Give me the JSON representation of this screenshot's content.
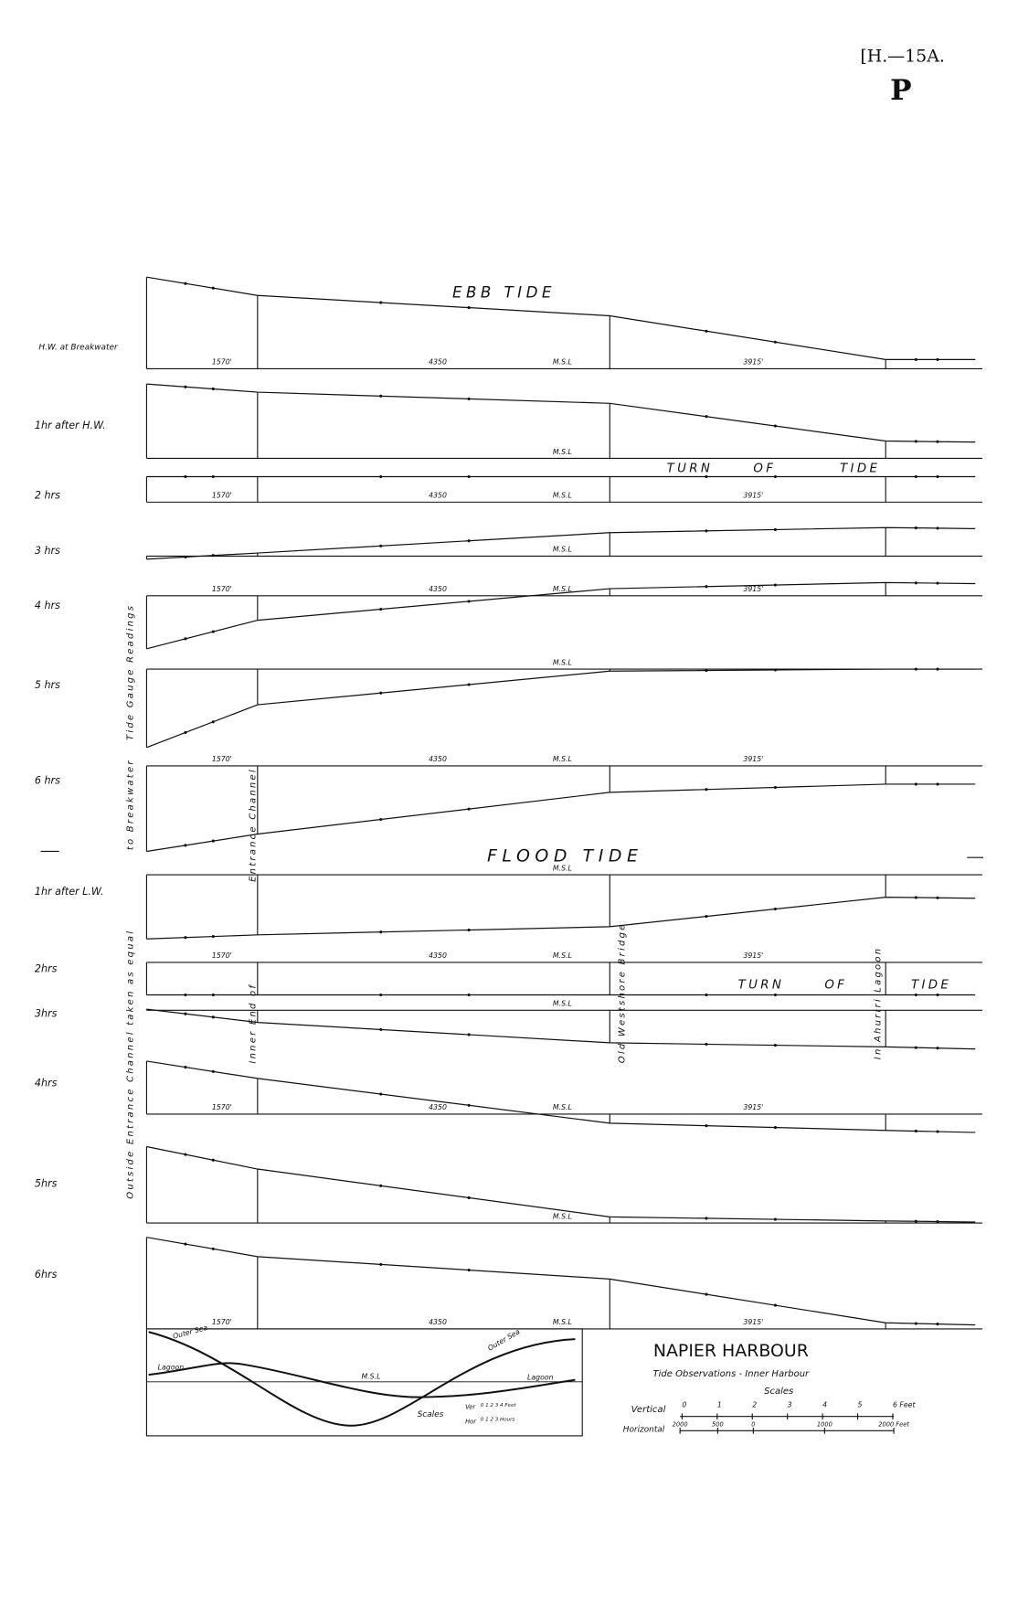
{
  "header": {
    "ref": "[H.—15A.",
    "letter": "P"
  },
  "sections": {
    "ebb": "EBB TIDE",
    "flood": "FLOOD TIDE",
    "turn": [
      "TURN",
      "OF",
      "TIDE"
    ]
  },
  "rows": [
    "H.W. at Breakwater",
    "1hr after H.W.",
    "2 hrs",
    "3 hrs",
    "4 hrs",
    "5 hrs",
    "6 hrs",
    "1hr after L.W.",
    "2hrs",
    "3hrs",
    "4hrs",
    "5hrs",
    "6hrs"
  ],
  "msl": "M.S.L",
  "distances": [
    "1570'",
    "4350",
    "3915'"
  ],
  "side_notes": [
    "Tide Gauge Readings",
    "to Breakwater",
    "Outside Entrance Channel taken as equal"
  ],
  "stations": [
    "Entrance Channel",
    "Inner End of",
    "Old Westshore Bridge",
    "In Ahuriri Lagoon"
  ],
  "title_block": {
    "title": "NAPIER HARBOUR",
    "subtitle": "Tide Observations - Inner Harbour",
    "scales": "Scales",
    "vertical": "Vertical",
    "horizontal": "Horizontal",
    "vertical_ticks": [
      "0",
      "1",
      "2",
      "3",
      "4",
      "5",
      "6 Feet"
    ],
    "horizontal_ticks": [
      "2000",
      "500",
      "0",
      "1000",
      "2000 Feet"
    ]
  },
  "inset": {
    "outer_sea": "Outer Sea",
    "lagoon": "Lagoon",
    "msl": "M.S.L",
    "scales": "Scales",
    "ver": "Ver",
    "hor": "Hor",
    "ver_ticks": "0 1 2 3 4 Feet",
    "hor_ticks": "0 1 2 3 Hours"
  }
}
